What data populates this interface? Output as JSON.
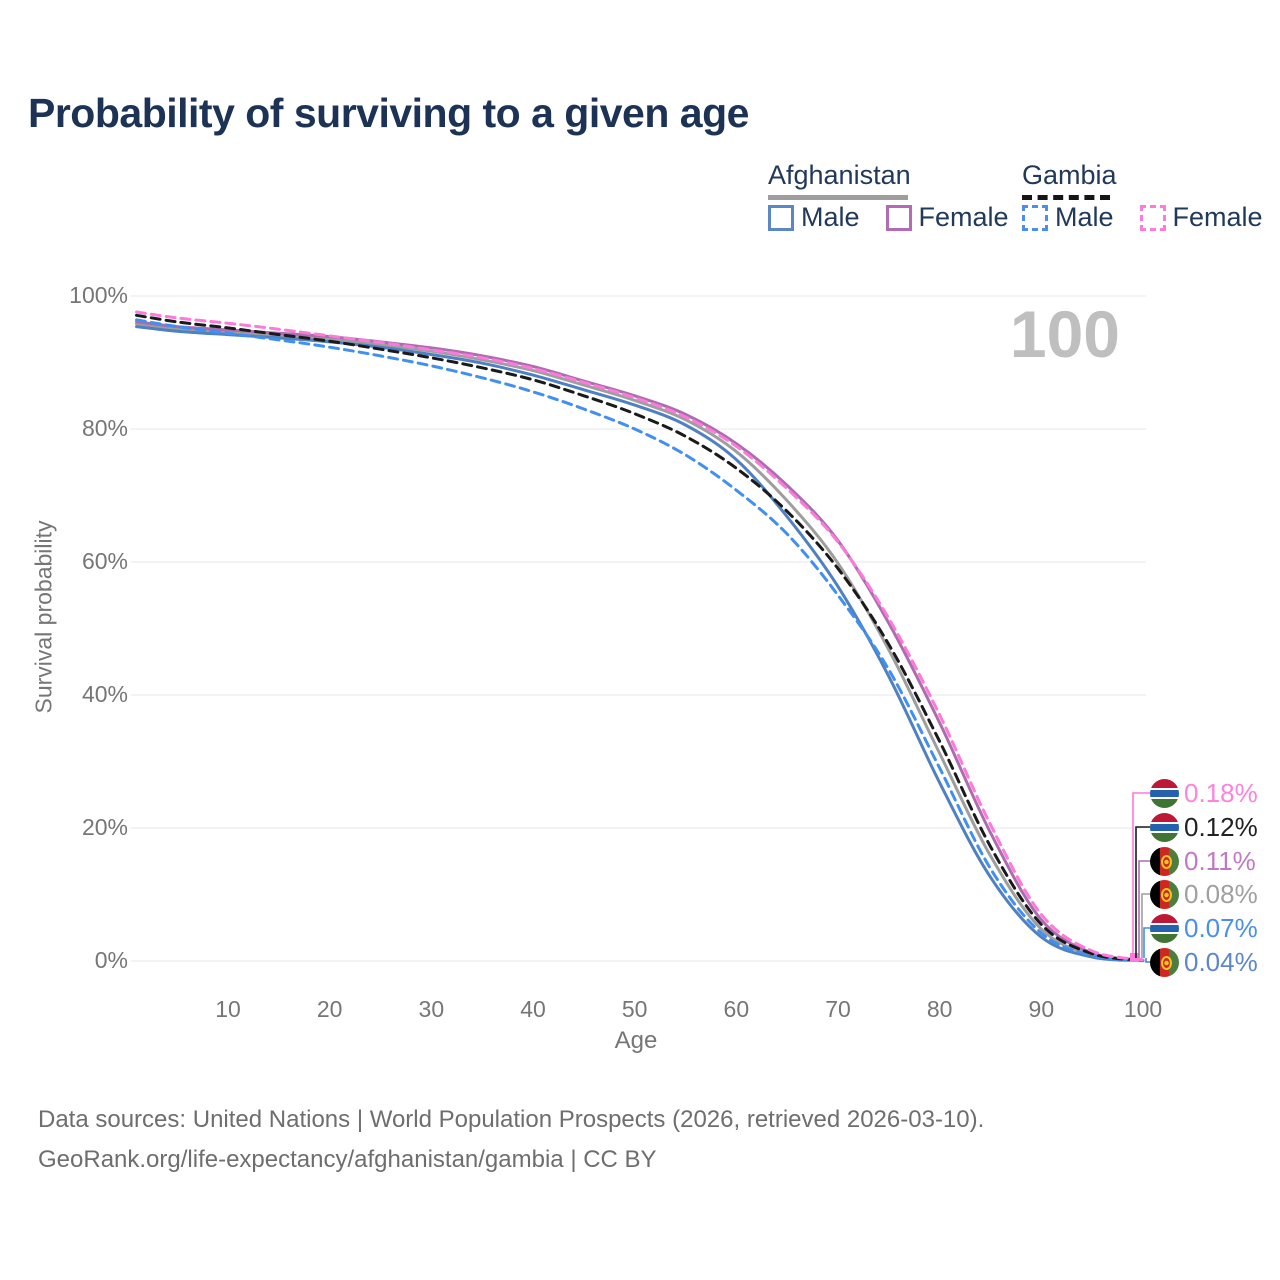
{
  "title": "Probability of surviving to a given age",
  "watermark_age": "100",
  "legend": {
    "groups": [
      {
        "name": "Afghanistan",
        "line_style": "solid",
        "underline_color": "#9e9e9e",
        "items": [
          {
            "label": "Male",
            "color": "#4f81c2"
          },
          {
            "label": "Female",
            "color": "#b36cb4"
          }
        ]
      },
      {
        "name": "Gambia",
        "line_style": "dashed",
        "underline_color": "#151515",
        "items": [
          {
            "label": "Male",
            "color": "#4a90e8"
          },
          {
            "label": "Female",
            "color": "#fb7ada"
          }
        ]
      }
    ]
  },
  "axes": {
    "y_title": "Survival probability",
    "x_title": "Age",
    "y_ticks": [
      "100%",
      "80%",
      "60%",
      "40%",
      "20%",
      "0%"
    ],
    "x_ticks": [
      "10",
      "20",
      "30",
      "40",
      "50",
      "60",
      "70",
      "80",
      "90",
      "100"
    ]
  },
  "end_labels": [
    {
      "value": "0.18%",
      "flag": "gambia",
      "text_color": "#ff82dc",
      "line_color": "#fb7ada"
    },
    {
      "value": "0.12%",
      "flag": "gambia",
      "text_color": "#222222",
      "line_color": "#1a1a1a"
    },
    {
      "value": "0.11%",
      "flag": "afghanistan",
      "text_color": "#c279c4",
      "line_color": "#ae6cb0"
    },
    {
      "value": "0.08%",
      "flag": "afghanistan",
      "text_color": "#a0a0a0",
      "line_color": "#9e9e9e"
    },
    {
      "value": "0.07%",
      "flag": "gambia",
      "text_color": "#4a90e8",
      "line_color": "#4190f0"
    },
    {
      "value": "0.04%",
      "flag": "afghanistan",
      "text_color": "#5e86cc",
      "line_color": "#4f81c2"
    }
  ],
  "footer": {
    "line1": "Data sources: United Nations | World Population Prospects (2026, retrieved 2026-03-10).",
    "line2": "GeoRank.org/life-expectancy/afghanistan/gambia | CC BY"
  },
  "chart_data": {
    "type": "line",
    "title": "Probability of surviving to a given age",
    "xlabel": "Age",
    "ylabel": "Survival probability",
    "xlim": [
      1,
      100
    ],
    "ylim": [
      0,
      100
    ],
    "grid": "horizontal",
    "legend_position": "top-right",
    "x": [
      1,
      5,
      10,
      15,
      20,
      25,
      30,
      35,
      40,
      45,
      50,
      55,
      60,
      65,
      70,
      75,
      80,
      85,
      90,
      95,
      100
    ],
    "series": [
      {
        "name": "Afghanistan — Male",
        "country": "Afghanistan",
        "sex": "male",
        "color": "#4f81c2",
        "dash": false,
        "end_label": "0.04%",
        "values": [
          95.4,
          94.7,
          94.2,
          93.7,
          93.1,
          92.3,
          91.2,
          89.9,
          88.1,
          85.9,
          83.6,
          80.6,
          75.4,
          66.8,
          56.3,
          42.8,
          26.8,
          12.6,
          3.6,
          0.6,
          0.04
        ]
      },
      {
        "name": "Afghanistan — Female",
        "country": "Afghanistan",
        "sex": "female",
        "color": "#ae6cb0",
        "dash": false,
        "end_label": "0.11%",
        "values": [
          96.1,
          95.4,
          94.9,
          94.4,
          93.9,
          93.1,
          92.2,
          91.0,
          89.4,
          87.2,
          85.0,
          82.2,
          77.8,
          71.5,
          63.2,
          50.8,
          35.8,
          19.3,
          6.2,
          1.2,
          0.11
        ]
      },
      {
        "name": "Afghanistan — Both sexes",
        "country": "Afghanistan",
        "sex": "both",
        "color": "#9e9e9e",
        "dash": false,
        "end_label": "0.08%",
        "values": [
          95.8,
          95.1,
          94.6,
          94.1,
          93.5,
          92.7,
          91.7,
          90.4,
          88.8,
          86.6,
          84.3,
          81.4,
          76.6,
          69.2,
          59.8,
          46.8,
          31.2,
          15.8,
          4.8,
          0.9,
          0.08
        ]
      },
      {
        "name": "Gambia — Male",
        "country": "Gambia",
        "sex": "male",
        "color": "#4190f0",
        "dash": true,
        "end_label": "0.07%",
        "values": [
          96.4,
          95.4,
          94.4,
          93.4,
          92.3,
          91.0,
          89.5,
          87.7,
          85.6,
          83.0,
          80.0,
          76.1,
          70.8,
          64.2,
          55.0,
          43.8,
          29.0,
          13.9,
          4.2,
          0.8,
          0.07
        ]
      },
      {
        "name": "Gambia — Female",
        "country": "Gambia",
        "sex": "female",
        "color": "#fb7ada",
        "dash": true,
        "end_label": "0.18%",
        "values": [
          97.6,
          96.7,
          95.9,
          95.0,
          94.0,
          93.0,
          91.9,
          90.7,
          89.1,
          87.0,
          84.7,
          81.8,
          77.4,
          71.0,
          63.0,
          51.5,
          37.0,
          20.5,
          7.0,
          1.5,
          0.18
        ]
      },
      {
        "name": "Gambia — Both sexes",
        "country": "Gambia",
        "sex": "both",
        "color": "#1a1a1a",
        "dash": true,
        "end_label": "0.12%",
        "values": [
          97.1,
          96.1,
          95.2,
          94.2,
          93.2,
          92.0,
          90.7,
          89.2,
          87.4,
          85.0,
          82.3,
          78.9,
          74.1,
          67.6,
          59.0,
          47.6,
          33.0,
          17.2,
          5.5,
          1.1,
          0.12
        ]
      }
    ]
  }
}
